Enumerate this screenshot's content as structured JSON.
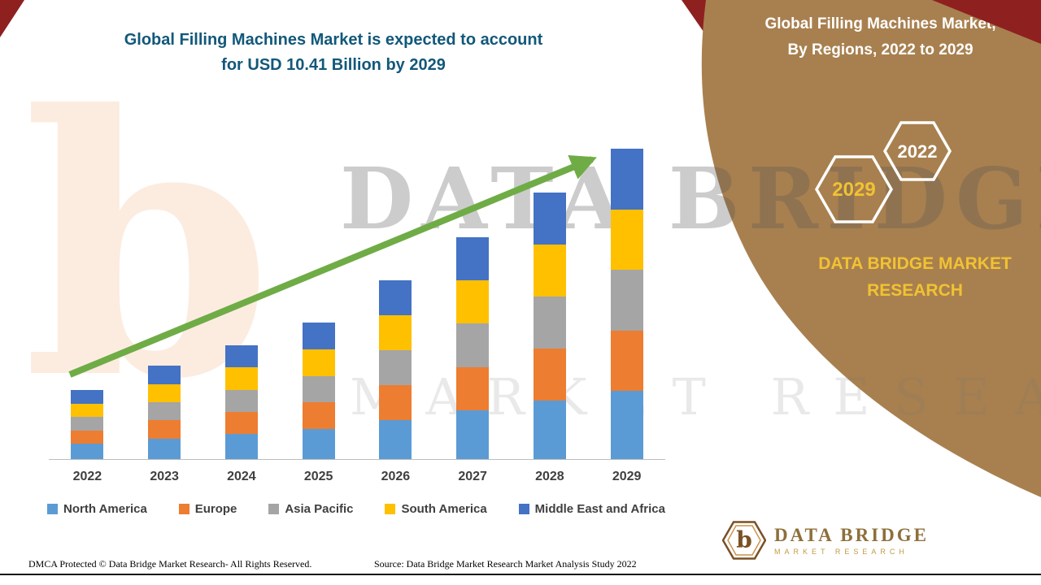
{
  "colors": {
    "panel_brown": "#A8804F",
    "corner_red": "#8E2020",
    "gold": "#F1C232",
    "title_teal": "#12587A",
    "arrow_green": "#6FAC46",
    "watermark_orange": "#ED7D31"
  },
  "header": {
    "title_line1": "Global Filling Machines Market is expected to account",
    "title_line2": "for USD 10.41 Billion by 2029"
  },
  "panel": {
    "title_line1": "Global Filling Machines Market,",
    "title_line2": "By Regions, 2022 to 2029",
    "badge_2029": "2029",
    "badge_2022": "2022",
    "brand_line1": "DATA BRIDGE MARKET",
    "brand_line2": "RESEARCH"
  },
  "watermark": {
    "letter": "b",
    "line1": "DATA BRIDGE",
    "line2": "MARKET RESEARCH"
  },
  "logo": {
    "letter": "b",
    "name": "DATA BRIDGE",
    "subtitle": "MARKET RESEARCH"
  },
  "footer": {
    "dmca": "DMCA Protected © Data Bridge Market Research- All Rights Reserved.",
    "source": "Source: Data Bridge Market Research Market Analysis Study 2022"
  },
  "chart_data": {
    "type": "bar",
    "stacked": true,
    "title": "Global Filling Machines Market is expected to account for USD 10.41 Billion by 2029",
    "unit": "USD Billion",
    "categories": [
      "2022",
      "2023",
      "2024",
      "2025",
      "2026",
      "2027",
      "2028",
      "2029"
    ],
    "series": [
      {
        "name": "North America",
        "color": "#5B9BD5",
        "values": [
          0.51,
          0.69,
          0.84,
          1.01,
          1.32,
          1.64,
          1.97,
          2.29
        ]
      },
      {
        "name": "Europe",
        "color": "#ED7D31",
        "values": [
          0.45,
          0.61,
          0.74,
          0.89,
          1.17,
          1.45,
          1.74,
          2.03
        ]
      },
      {
        "name": "Asia Pacific",
        "color": "#A5A5A5",
        "values": [
          0.45,
          0.61,
          0.75,
          0.89,
          1.17,
          1.45,
          1.74,
          2.03
        ]
      },
      {
        "name": "South America",
        "color": "#FFC000",
        "values": [
          0.45,
          0.61,
          0.74,
          0.89,
          1.17,
          1.45,
          1.74,
          2.03
        ]
      },
      {
        "name": "Middle East and Africa",
        "color": "#4472C4",
        "values": [
          0.46,
          0.61,
          0.75,
          0.9,
          1.17,
          1.45,
          1.75,
          2.03
        ]
      }
    ],
    "totals_estimated": [
      2.32,
      3.13,
      3.82,
      4.58,
      6.0,
      7.44,
      8.94,
      10.41
    ],
    "highlight": "2029 total = USD 10.41 Billion (labeled in title); earlier years estimated from bar heights",
    "xlabel": "",
    "ylabel": "",
    "ylim": [
      0,
      10.41
    ],
    "axis": {
      "y_axis_hidden": true,
      "gridlines": false
    },
    "legend_position": "bottom",
    "trend_arrow": true
  }
}
